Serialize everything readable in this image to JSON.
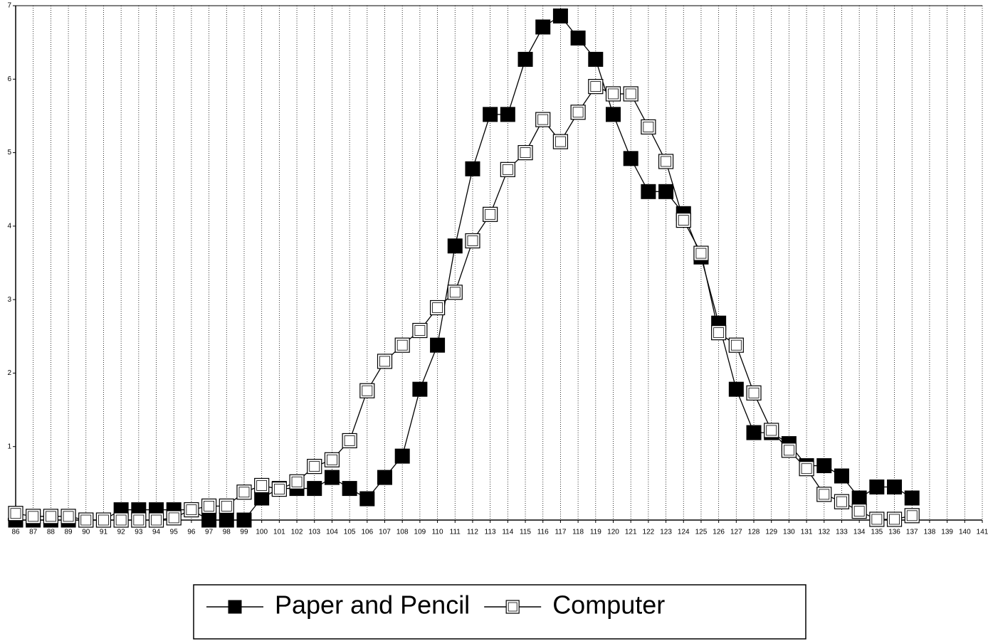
{
  "chart_data": {
    "type": "line",
    "x": [
      86,
      87,
      88,
      89,
      90,
      91,
      92,
      93,
      94,
      95,
      96,
      97,
      98,
      99,
      100,
      101,
      102,
      103,
      104,
      105,
      106,
      107,
      108,
      109,
      110,
      111,
      112,
      113,
      114,
      115,
      116,
      117,
      118,
      119,
      120,
      121,
      122,
      123,
      124,
      125,
      126,
      127,
      128,
      129,
      130,
      131,
      132,
      133,
      134,
      135,
      136,
      137
    ],
    "series": [
      {
        "name": "Paper and Pencil",
        "color": "#000000",
        "marker": "filled",
        "values": [
          0,
          0,
          0,
          0,
          0,
          0,
          0.14,
          0.14,
          0.14,
          0.14,
          0.14,
          0,
          0,
          0,
          0.3,
          0.43,
          0.43,
          0.43,
          0.58,
          0.43,
          0.29,
          0.58,
          0.87,
          1.78,
          2.38,
          3.73,
          4.78,
          5.52,
          5.52,
          6.27,
          6.71,
          6.86,
          6.56,
          6.27,
          5.52,
          4.92,
          4.47,
          4.47,
          4.17,
          3.58,
          2.68,
          1.78,
          1.19,
          1.19,
          1.04,
          0.74,
          0.74,
          0.6,
          0.3,
          0.45,
          0.45,
          0.3
        ]
      },
      {
        "name": "Computer",
        "color": "#000000",
        "marker": "open",
        "values": [
          0.09,
          0.05,
          0.05,
          0.05,
          0,
          0,
          0,
          0,
          0,
          0.03,
          0.14,
          0.19,
          0.19,
          0.38,
          0.47,
          0.42,
          0.52,
          0.73,
          0.82,
          1.08,
          1.76,
          2.16,
          2.38,
          2.58,
          2.89,
          3.1,
          3.8,
          4.16,
          4.77,
          5.0,
          5.45,
          5.15,
          5.55,
          5.9,
          5.8,
          5.8,
          5.35,
          4.88,
          4.08,
          3.63,
          2.55,
          2.38,
          1.73,
          1.22,
          0.95,
          0.7,
          0.35,
          0.25,
          0.12,
          0.01,
          0.01,
          0.06
        ]
      }
    ],
    "xlim": [
      86,
      141
    ],
    "xticks": [
      86,
      87,
      88,
      89,
      90,
      91,
      92,
      93,
      94,
      95,
      96,
      97,
      98,
      99,
      100,
      101,
      102,
      103,
      104,
      105,
      106,
      107,
      108,
      109,
      110,
      111,
      112,
      113,
      114,
      115,
      116,
      117,
      118,
      119,
      120,
      121,
      122,
      123,
      124,
      125,
      126,
      127,
      128,
      129,
      130,
      131,
      132,
      133,
      134,
      135,
      136,
      137,
      138,
      139,
      140,
      141
    ],
    "ylim": [
      0,
      7
    ],
    "yticks": [
      0,
      1,
      2,
      3,
      4,
      5,
      6,
      7
    ],
    "grid": true
  }
}
